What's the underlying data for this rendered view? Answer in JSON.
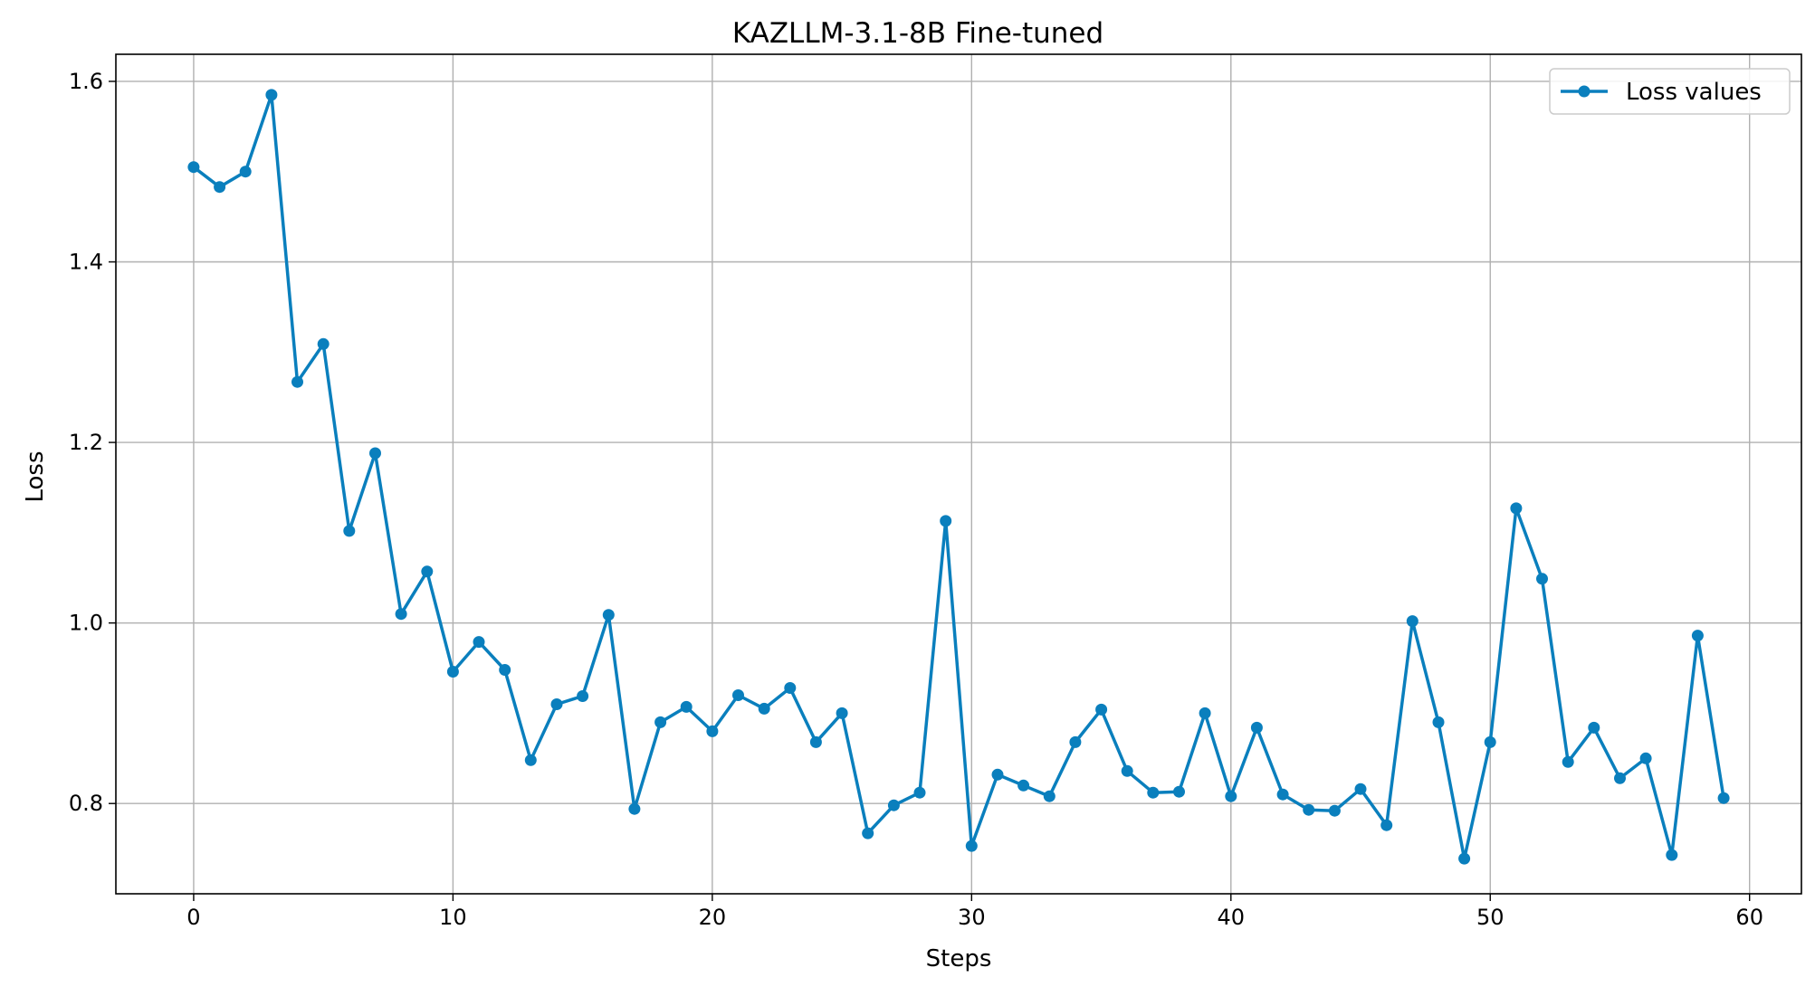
{
  "chart_data": {
    "type": "line",
    "title": "KAZLLM-3.1-8B Fine-tuned",
    "xlabel": "Steps",
    "ylabel": "Loss",
    "xlim": [
      -3,
      62
    ],
    "ylim": [
      0.7,
      1.63
    ],
    "xticks": [
      0,
      10,
      20,
      30,
      40,
      50,
      60
    ],
    "yticks": [
      0.8,
      1.0,
      1.2,
      1.4,
      1.6
    ],
    "xtick_labels": [
      "0",
      "10",
      "20",
      "30",
      "40",
      "50",
      "60"
    ],
    "ytick_labels": [
      "0.8",
      "1.0",
      "1.2",
      "1.4",
      "1.6"
    ],
    "grid": true,
    "legend_position": "top-right",
    "series": [
      {
        "name": "Loss values",
        "color": "#0a7fbd",
        "marker": "circle",
        "x": [
          0,
          1,
          2,
          3,
          4,
          5,
          6,
          7,
          8,
          9,
          10,
          11,
          12,
          13,
          14,
          15,
          16,
          17,
          18,
          19,
          20,
          21,
          22,
          23,
          24,
          25,
          26,
          27,
          28,
          29,
          30,
          31,
          32,
          33,
          34,
          35,
          36,
          37,
          38,
          39,
          40,
          41,
          42,
          43,
          44,
          45,
          46,
          47,
          48,
          49,
          50,
          51,
          52,
          53,
          54,
          55,
          56,
          57,
          58,
          59
        ],
        "values": [
          1.505,
          1.483,
          1.5,
          1.585,
          1.267,
          1.309,
          1.102,
          1.188,
          1.01,
          1.057,
          0.946,
          0.979,
          0.948,
          0.848,
          0.91,
          0.919,
          1.009,
          0.794,
          0.89,
          0.907,
          0.88,
          0.92,
          0.905,
          0.928,
          0.868,
          0.9,
          0.767,
          0.798,
          0.812,
          1.113,
          0.753,
          0.832,
          0.82,
          0.808,
          0.868,
          0.904,
          0.836,
          0.812,
          0.813,
          0.9,
          0.808,
          0.884,
          0.81,
          0.793,
          0.792,
          0.816,
          0.776,
          1.002,
          0.89,
          0.739,
          0.868,
          1.127,
          1.049,
          0.846,
          0.884,
          0.828,
          0.85,
          0.743,
          0.986,
          0.806
        ]
      }
    ]
  }
}
